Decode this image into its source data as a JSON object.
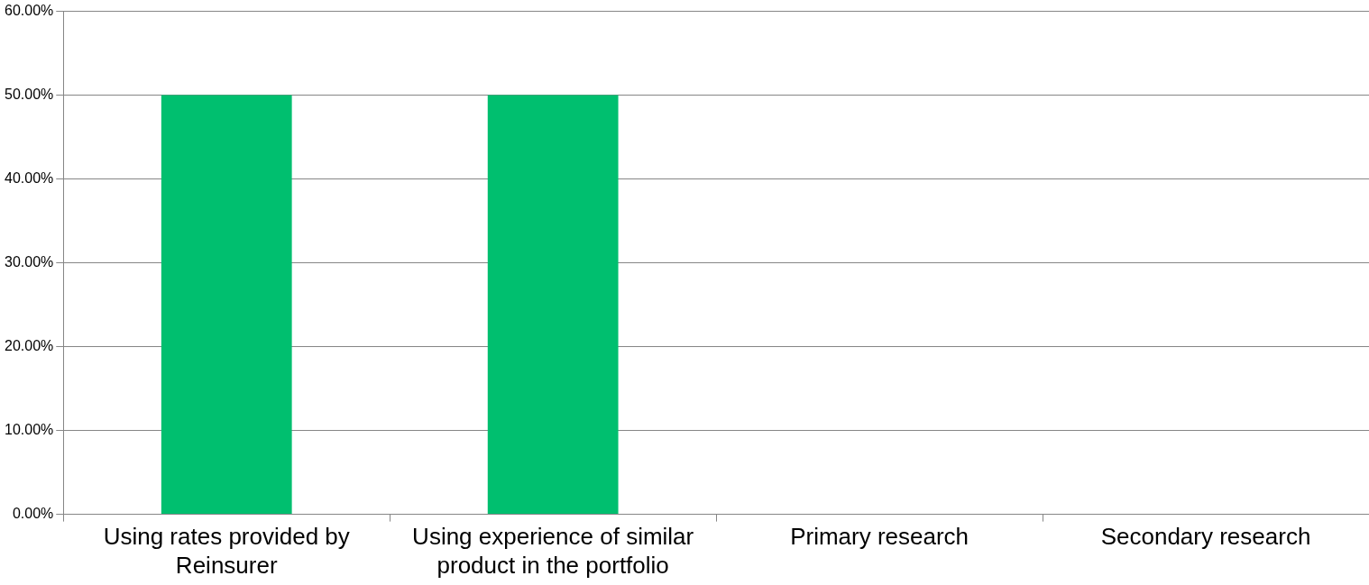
{
  "chart_data": {
    "type": "bar",
    "categories": [
      "Using rates provided by Reinsurer",
      "Using experience of similar product in the portfolio",
      "Primary research",
      "Secondary research"
    ],
    "values": [
      50,
      50,
      0,
      0
    ],
    "color": "#00bf6f",
    "ylim": [
      0,
      60
    ],
    "yticks": [
      {
        "value": 0,
        "label": "0.00%"
      },
      {
        "value": 10,
        "label": "10.00%"
      },
      {
        "value": 20,
        "label": "20.00%"
      },
      {
        "value": 30,
        "label": "30.00%"
      },
      {
        "value": 40,
        "label": "40.00%"
      },
      {
        "value": 50,
        "label": "50.00%"
      },
      {
        "value": 60,
        "label": "60.00%"
      }
    ],
    "grid": "y",
    "legend": false
  }
}
